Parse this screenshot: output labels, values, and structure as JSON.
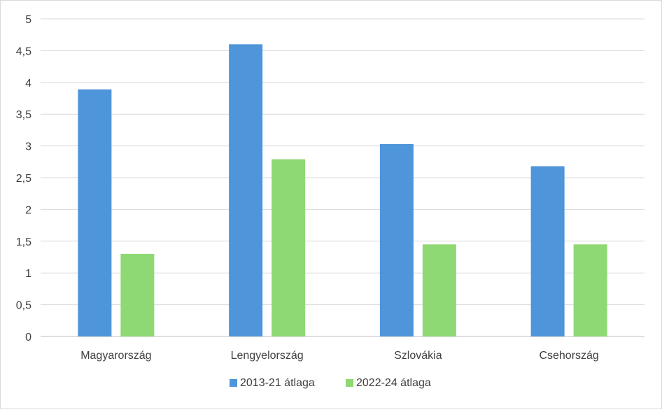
{
  "chart_data": {
    "type": "bar",
    "categories": [
      "Magyarország",
      "Lengyelország",
      "Szlovákia",
      "Csehország"
    ],
    "series": [
      {
        "name": "2013-21 átlaga",
        "values": [
          3.89,
          4.6,
          3.03,
          2.68
        ],
        "color": "#4e95d9"
      },
      {
        "name": "2022-24 átlaga",
        "values": [
          1.3,
          2.79,
          1.45,
          1.45
        ],
        "color": "#8ed973"
      }
    ],
    "y_ticks": [
      "0",
      "0,5",
      "1",
      "1,5",
      "2",
      "2,5",
      "3",
      "3,5",
      "4",
      "4,5",
      "5"
    ],
    "ylim": [
      0,
      5
    ],
    "grid": true,
    "legend_position": "bottom"
  }
}
